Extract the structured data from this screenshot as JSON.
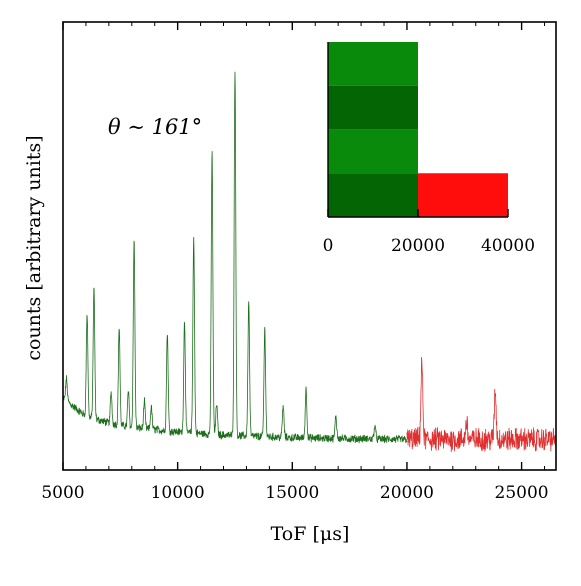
{
  "chart_data": [
    {
      "type": "line",
      "xlabel": "ToF [μs]",
      "ylabel": "counts [arbitrary units]",
      "xlim": [
        5000,
        26500
      ],
      "ylim": [
        0,
        100
      ],
      "xticks": [
        5000,
        10000,
        15000,
        20000,
        25000
      ],
      "xtick_labels": [
        "5000",
        "10000",
        "15000",
        "20000",
        "25000"
      ],
      "yticks_labeled": false,
      "grid": false,
      "annotation": "θ ∼ 161°",
      "colors": {
        "green": "#1e6e1e",
        "red": "#e03030",
        "axis": "#000000"
      },
      "baseline": [
        {
          "x": 5000,
          "y": 16
        },
        {
          "x": 6000,
          "y": 12
        },
        {
          "x": 7000,
          "y": 10.5
        },
        {
          "x": 8000,
          "y": 9.5
        },
        {
          "x": 10000,
          "y": 8.5
        },
        {
          "x": 12000,
          "y": 7.8
        },
        {
          "x": 15000,
          "y": 7.2
        },
        {
          "x": 20000,
          "y": 6.8
        },
        {
          "x": 26500,
          "y": 6.8
        }
      ],
      "noise_amplitude": {
        "green": 0.8,
        "red": 2.3
      },
      "peaks": [
        {
          "x": 5150,
          "h": 5,
          "w": 35
        },
        {
          "x": 6050,
          "h": 23,
          "w": 35
        },
        {
          "x": 6350,
          "h": 29,
          "w": 35
        },
        {
          "x": 7100,
          "h": 7,
          "w": 35
        },
        {
          "x": 7450,
          "h": 22,
          "w": 35
        },
        {
          "x": 7850,
          "h": 8,
          "w": 35
        },
        {
          "x": 8100,
          "h": 42,
          "w": 35
        },
        {
          "x": 8550,
          "h": 6,
          "w": 35
        },
        {
          "x": 8850,
          "h": 5,
          "w": 35
        },
        {
          "x": 9550,
          "h": 22,
          "w": 35
        },
        {
          "x": 10300,
          "h": 25,
          "w": 35
        },
        {
          "x": 10700,
          "h": 44,
          "w": 35
        },
        {
          "x": 11500,
          "h": 63,
          "w": 35
        },
        {
          "x": 11700,
          "h": 7,
          "w": 35
        },
        {
          "x": 12500,
          "h": 82,
          "w": 35
        },
        {
          "x": 13100,
          "h": 30,
          "w": 35
        },
        {
          "x": 13800,
          "h": 24,
          "w": 35
        },
        {
          "x": 14600,
          "h": 7,
          "w": 35
        },
        {
          "x": 15600,
          "h": 11,
          "w": 35
        },
        {
          "x": 16900,
          "h": 5,
          "w": 35
        },
        {
          "x": 18600,
          "h": 3,
          "w": 35
        },
        {
          "x": 20650,
          "h": 17,
          "w": 40
        },
        {
          "x": 22600,
          "h": 4,
          "w": 40
        },
        {
          "x": 23850,
          "h": 11,
          "w": 40
        }
      ],
      "series": [
        {
          "x_start": 5000,
          "x_end": 20000,
          "color_key": "green"
        },
        {
          "x_start": 20000,
          "x_end": 26500,
          "color_key": "red"
        }
      ]
    },
    {
      "type": "bar",
      "orientation": "horizontal-span",
      "xlim": [
        0,
        40000
      ],
      "xticks": [
        0,
        20000,
        40000
      ],
      "xtick_labels": [
        "0",
        "20000",
        "40000"
      ],
      "ylim": [
        0,
        4
      ],
      "bars": [
        {
          "x0": 0,
          "x1": 20000,
          "y0": 3,
          "y1": 4,
          "color": "#0a8a0a"
        },
        {
          "x0": 0,
          "x1": 20000,
          "y0": 2,
          "y1": 3,
          "color": "#046504"
        },
        {
          "x0": 0,
          "x1": 20000,
          "y0": 1,
          "y1": 2,
          "color": "#0a8a0a"
        },
        {
          "x0": 0,
          "x1": 20000,
          "y0": 0,
          "y1": 1,
          "color": "#046504"
        },
        {
          "x0": 20000,
          "x1": 40000,
          "y0": 0,
          "y1": 1,
          "color": "#ff0d0d"
        }
      ]
    }
  ]
}
